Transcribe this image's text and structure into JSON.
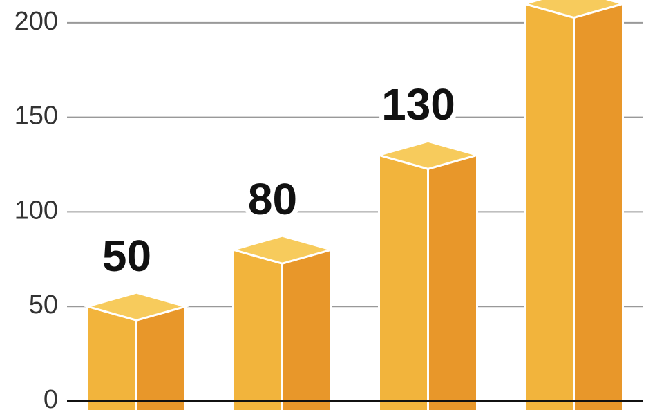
{
  "chart_data": {
    "type": "bar3d",
    "categories": [
      null,
      null,
      null,
      null
    ],
    "values": [
      50,
      80,
      130,
      210
    ],
    "colors": {
      "top": "#f7cb5c",
      "front": "#f2b43c",
      "side": "#e8972a"
    },
    "ylim": [
      0,
      212
    ],
    "yticks": [
      0,
      50,
      100,
      150,
      200
    ],
    "grid": true
  }
}
